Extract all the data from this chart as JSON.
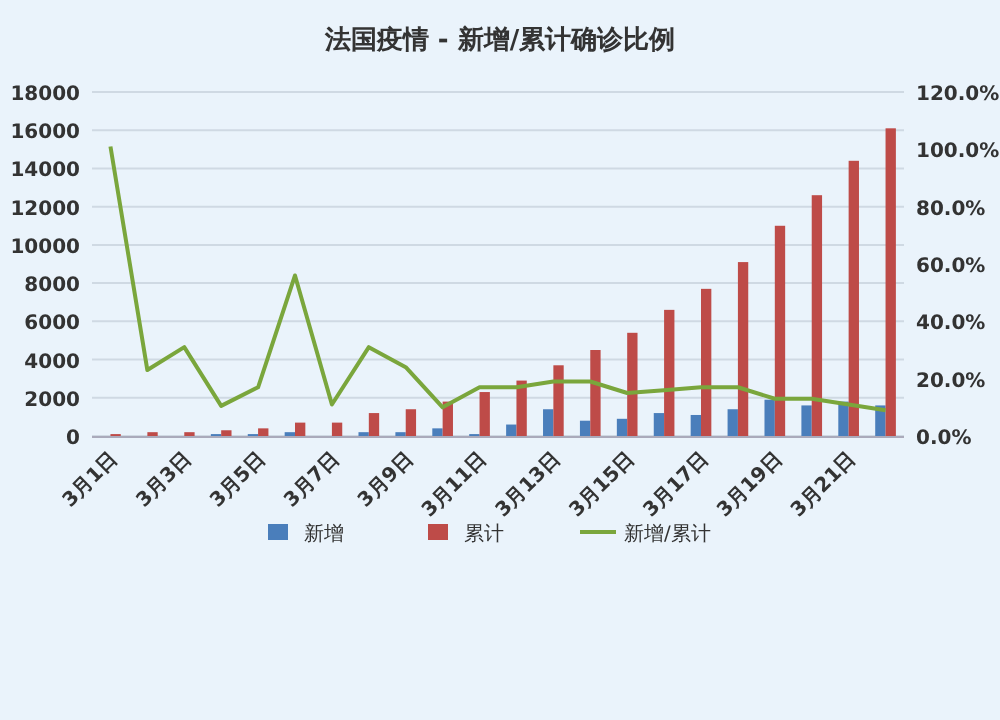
{
  "chart_data": {
    "type": "bar",
    "title": "法国疫情 - 新增/累计确诊比例",
    "categories": [
      "3月1日",
      null,
      "3月3日",
      null,
      "3月5日",
      null,
      "3月7日",
      null,
      "3月9日",
      null,
      "3月11日",
      null,
      "3月13日",
      null,
      "3月15日",
      null,
      "3月17日",
      null,
      "3月19日",
      null,
      "3月21日",
      null
    ],
    "series": [
      {
        "name": "新增",
        "color": "#4a7ebb",
        "values": [
          0,
          0,
          0,
          100,
          100,
          200,
          0,
          200,
          200,
          400,
          100,
          600,
          1400,
          800,
          900,
          1200,
          1100,
          1400,
          1900,
          1600,
          1800,
          1600
        ]
      },
      {
        "name": "累计",
        "color": "#be4b48",
        "values": [
          100,
          200,
          200,
          300,
          400,
          700,
          700,
          1200,
          1400,
          1800,
          2300,
          2900,
          3700,
          4500,
          5400,
          6600,
          7700,
          9100,
          11000,
          12600,
          14400,
          16100
        ]
      },
      {
        "name": "新增/累计",
        "type": "line",
        "axis": "y2",
        "color": "#7aa63c",
        "values": [
          101,
          23,
          31,
          10.5,
          17,
          56,
          11,
          31,
          24,
          10,
          17,
          17,
          19,
          19,
          15,
          16,
          17,
          17,
          13,
          13,
          11,
          9
        ]
      }
    ],
    "ylim": [
      0,
      18000
    ],
    "yticks": [
      0,
      2000,
      4000,
      6000,
      8000,
      10000,
      12000,
      14000,
      16000,
      18000
    ],
    "y2lim": [
      0,
      120
    ],
    "y2ticks": [
      {
        "value": 0,
        "label": "0.0%"
      },
      {
        "value": 20,
        "label": "20.0%"
      },
      {
        "value": 40,
        "label": "40.0%"
      },
      {
        "value": 60,
        "label": "60.0%"
      },
      {
        "value": 80,
        "label": "80.0%"
      },
      {
        "value": 100,
        "label": "100.0%"
      },
      {
        "value": 120,
        "label": "120.0%"
      }
    ],
    "grid": "y",
    "legend": "bottom"
  }
}
